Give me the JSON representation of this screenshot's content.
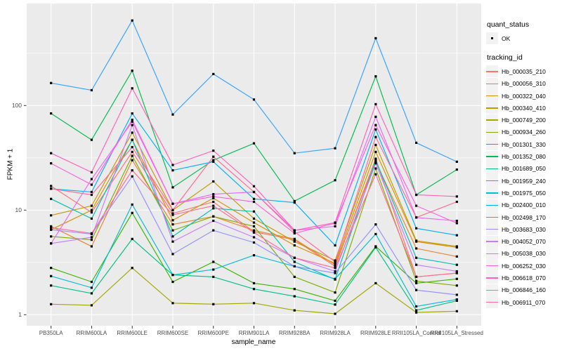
{
  "chart_data": {
    "type": "line",
    "title": "",
    "xlabel": "sample_name",
    "ylabel": "FPKM + 1",
    "y_scale": "log10",
    "ylim": [
      0.78,
      950
    ],
    "y_ticks": [
      1,
      10,
      100
    ],
    "y_tick_labels": [
      "1",
      "10",
      "100"
    ],
    "grid": "on",
    "panel_color": "#EBEBEB",
    "grid_color": "#FFFFFF",
    "point_marker": {
      "shape": "small-black-square",
      "color": "#000000"
    },
    "legend_position": "right",
    "categories": [
      "PB350LA",
      "RRIM600LA",
      "RRIM600LE",
      "RRIM600SE",
      "RRIM600PE",
      "RRIM901LA",
      "RRIM928BA",
      "RRIM928LA",
      "RRIM928LE",
      "RRII105LA_Control",
      "RRII105LA_Stressed"
    ],
    "series": [
      {
        "name": "Hb_000035_210",
        "color": "#F8766D",
        "values": [
          17,
          9.5,
          36,
          9.3,
          12,
          6.2,
          5.2,
          2.9,
          31,
          2.3,
          2.5
        ]
      },
      {
        "name": "Hb_000056_310",
        "color": "#EA8331",
        "values": [
          7.0,
          4.5,
          30,
          7.3,
          8.7,
          6.4,
          5.3,
          3.0,
          29,
          4.3,
          3.6
        ]
      },
      {
        "name": "Hb_000322_040",
        "color": "#D89000",
        "values": [
          6.5,
          10,
          47,
          8.0,
          13,
          7.6,
          4.6,
          3.1,
          36,
          5.0,
          4.4
        ]
      },
      {
        "name": "Hb_000340_410",
        "color": "#C09B00",
        "values": [
          8.9,
          11,
          55,
          10,
          18.8,
          8.3,
          5.0,
          3.3,
          42,
          5.1,
          4.5
        ]
      },
      {
        "name": "Hb_000749_200",
        "color": "#A3A500",
        "values": [
          1.26,
          1.23,
          2.8,
          1.29,
          1.26,
          1.29,
          1.1,
          1.02,
          2.0,
          1.05,
          1.08
        ]
      },
      {
        "name": "Hb_000934_260",
        "color": "#7CAE00",
        "values": [
          5.6,
          5.2,
          33,
          6.4,
          8.7,
          7.0,
          2.3,
          1.63,
          25,
          2.1,
          1.9
        ]
      },
      {
        "name": "Hb_001301_330",
        "color": "#39B600",
        "values": [
          2.8,
          2.06,
          9.4,
          2.06,
          3.2,
          2.0,
          1.76,
          1.36,
          4.5,
          2.0,
          2.2
        ]
      },
      {
        "name": "Hb_001352_080",
        "color": "#00BB4E",
        "values": [
          84,
          47,
          215,
          16.5,
          30,
          43.5,
          12.2,
          19.3,
          190,
          14,
          24.4
        ]
      },
      {
        "name": "Hb_001689_050",
        "color": "#00C087",
        "values": [
          1.9,
          1.6,
          5.3,
          2.4,
          2.3,
          1.76,
          1.5,
          1.25,
          4.4,
          1.1,
          1.36
        ]
      },
      {
        "name": "Hb_001959_240",
        "color": "#00C0B2",
        "values": [
          12.8,
          8.3,
          47,
          5.6,
          10.4,
          9.7,
          3.2,
          2.17,
          30,
          3.5,
          3.0
        ]
      },
      {
        "name": "Hb_001975_050",
        "color": "#00BCD8",
        "values": [
          2.34,
          1.81,
          11.3,
          2.4,
          2.7,
          3.7,
          2.9,
          2.2,
          5.9,
          1.2,
          1.4
        ]
      },
      {
        "name": "Hb_002400_010",
        "color": "#00B0F6",
        "values": [
          16,
          14.9,
          84,
          24,
          29,
          12.8,
          11.8,
          4.6,
          59,
          6.7,
          5.75
        ]
      },
      {
        "name": "Hb_002498_170",
        "color": "#35A2FF",
        "values": [
          164,
          140,
          650,
          82,
          200,
          114,
          35,
          39,
          440,
          44,
          29
        ]
      },
      {
        "name": "Hb_003683_030",
        "color": "#9590FF",
        "values": [
          6.5,
          5.9,
          21,
          3.8,
          6.4,
          4.9,
          2.9,
          2.5,
          7.3,
          1.72,
          1.55
        ]
      },
      {
        "name": "Hb_004052_070",
        "color": "#C77CFF",
        "values": [
          4.8,
          5.5,
          65,
          5.0,
          7.9,
          5.5,
          3.5,
          2.6,
          28,
          3.0,
          2.6
        ]
      },
      {
        "name": "Hb_005038_030",
        "color": "#E76BF3",
        "values": [
          4.8,
          19.8,
          70,
          11.5,
          14.2,
          14.9,
          6.4,
          7.0,
          78,
          8.5,
          7.9
        ]
      },
      {
        "name": "Hb_006252_030",
        "color": "#FA62DB",
        "values": [
          28,
          17.5,
          73,
          11.5,
          13.5,
          12,
          6.0,
          7.5,
          65,
          11,
          7.5
        ]
      },
      {
        "name": "Hb_006618_070",
        "color": "#FF62BC",
        "values": [
          35,
          23,
          146,
          27,
          37,
          16.9,
          6.4,
          7.6,
          103,
          14,
          13.5
        ]
      },
      {
        "name": "Hb_006846_160",
        "color": "#FF6A98",
        "values": [
          16,
          14,
          40,
          10,
          32.4,
          14.9,
          6.2,
          3.2,
          50,
          8.5,
          12
        ]
      },
      {
        "name": "Hb_006911_070",
        "color": "#FF6C91",
        "values": [
          6.8,
          6.0,
          24,
          9.0,
          11,
          6.1,
          3.5,
          2.8,
          22,
          2.3,
          2.5
        ]
      }
    ]
  },
  "legend": {
    "quant_status_title": "quant_status",
    "ok_label": "OK",
    "tracking_id_title": "tracking_id",
    "key_background": "#F2F2F2"
  }
}
